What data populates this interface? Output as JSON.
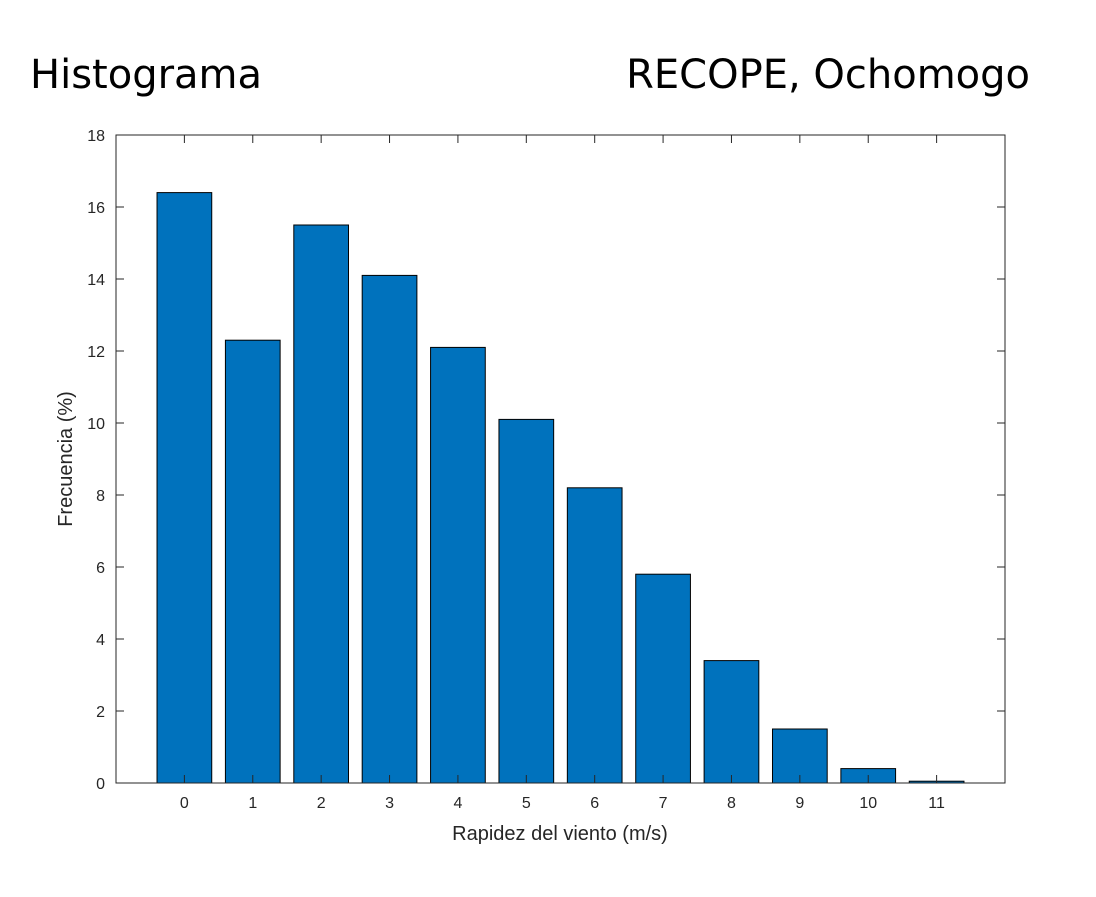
{
  "header": {
    "left_title": "Histograma",
    "right_title": "RECOPE, Ochomogo"
  },
  "chart_data": {
    "type": "bar",
    "categories": [
      "0",
      "1",
      "2",
      "3",
      "4",
      "5",
      "6",
      "7",
      "8",
      "9",
      "10",
      "11"
    ],
    "values": [
      16.4,
      12.3,
      15.5,
      14.1,
      12.1,
      10.1,
      8.2,
      5.8,
      3.4,
      1.5,
      0.4,
      0.05
    ],
    "xlabel": "Rapidez del viento (m/s)",
    "ylabel": "Frecuencia (%)",
    "xlim": [
      -1,
      12
    ],
    "ylim": [
      0,
      18
    ],
    "yticks": [
      0,
      2,
      4,
      6,
      8,
      10,
      12,
      14,
      16,
      18
    ],
    "grid": false,
    "bar_color": "#0072BD",
    "edge_color": "#000000"
  }
}
